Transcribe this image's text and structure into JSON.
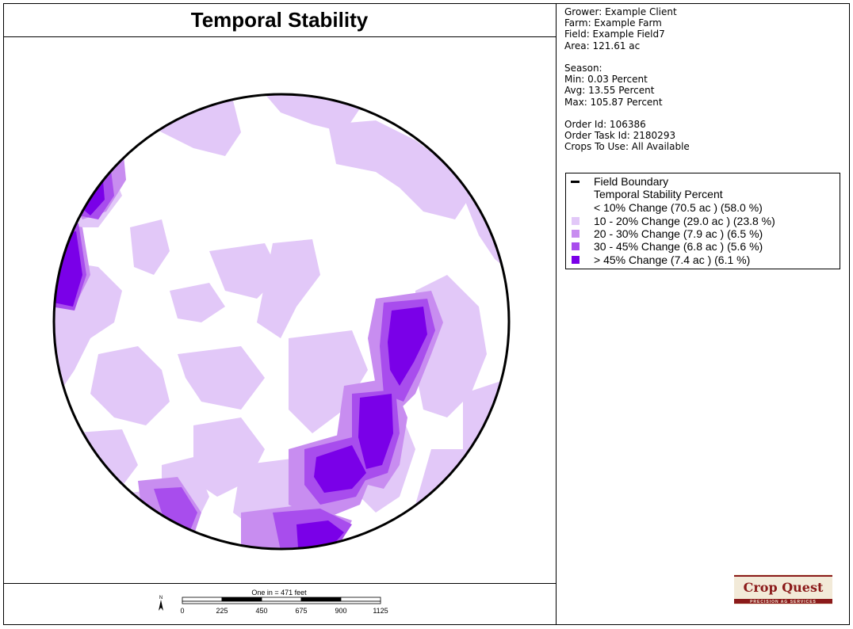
{
  "header": {
    "title": "Temporal Stability"
  },
  "info": {
    "grower": "Grower: Example Client",
    "farm": "Farm: Example Farm",
    "field": "Field: Example Field7",
    "area": "Area: 121.61 ac",
    "season": "Season:",
    "min": "Min: 0.03 Percent",
    "avg": "Avg: 13.55 Percent",
    "max": "Max: 105.87 Percent",
    "order_id": "Order Id: 106386",
    "order_task_id": "Order Task Id: 2180293",
    "crops": "Crops To Use: All Available"
  },
  "legend": {
    "boundary_label": "Field Boundary",
    "heading": "Temporal Stability Percent",
    "classes": [
      {
        "label": "< 10% Change (70.5 ac ) (58.0 %)",
        "color": "#ffffff"
      },
      {
        "label": "10 - 20% Change (29.0 ac ) (23.8 %)",
        "color": "#e2c8f8"
      },
      {
        "label": "20 - 30% Change (7.9 ac ) (6.5 %)",
        "color": "#c88df0"
      },
      {
        "label": "30 - 45% Change (6.8 ac ) (5.6 %)",
        "color": "#a84ded"
      },
      {
        "label": "> 45% Change (7.4 ac ) (6.1 %)",
        "color": "#7a00e8"
      }
    ]
  },
  "scale": {
    "caption": "One in = 471 feet",
    "north": "N",
    "ticks": [
      "0",
      "225",
      "450",
      "675",
      "900",
      "1125"
    ]
  },
  "logo": {
    "name": "Crop Quest",
    "tagline": "PRECISION AG SERVICES"
  },
  "colors": {
    "boundary": "#000000",
    "logo_red": "#8b1a1a"
  }
}
